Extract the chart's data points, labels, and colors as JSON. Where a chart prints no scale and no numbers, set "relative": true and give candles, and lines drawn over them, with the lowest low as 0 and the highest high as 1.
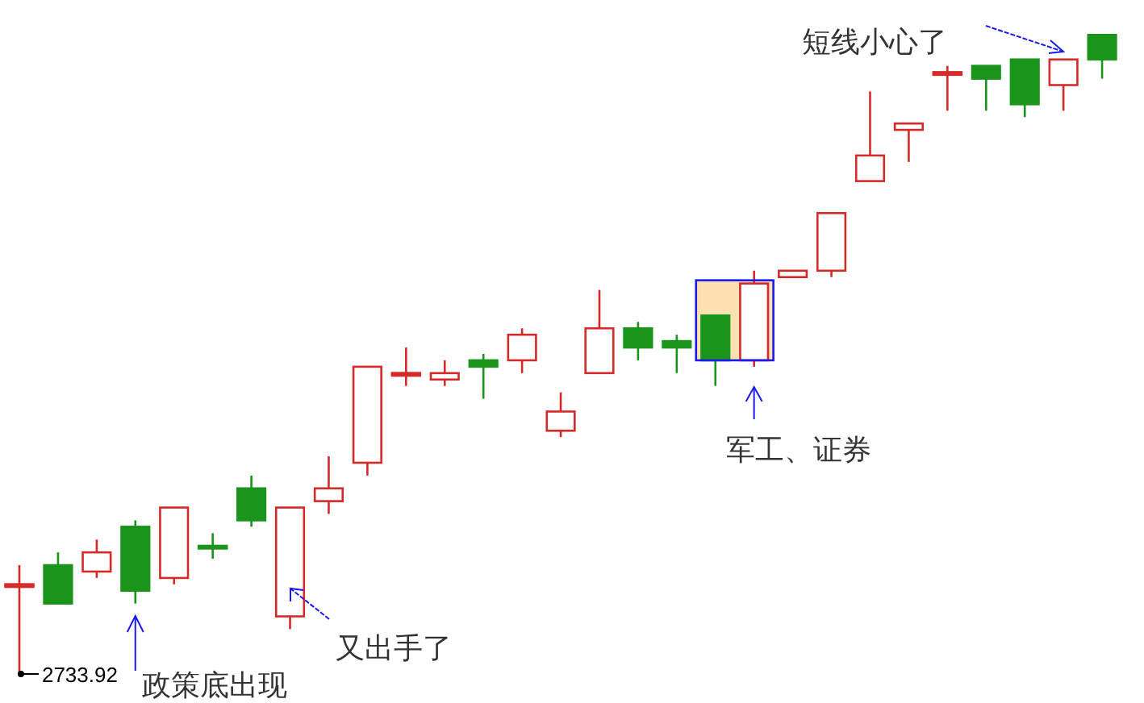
{
  "chart_data": {
    "type": "candlestick",
    "relative": true,
    "categories": [
      null,
      null,
      null,
      null,
      null,
      null,
      null,
      null,
      null,
      null,
      null,
      null,
      null,
      null,
      null,
      null,
      null,
      null,
      null,
      null,
      null,
      null,
      null,
      null,
      null,
      null,
      null,
      null,
      null
    ],
    "ohlc": [
      [
        0.14,
        0.17,
        0,
        0.14
      ],
      [
        0.17,
        0.19,
        0.11,
        0.11
      ],
      [
        0.16,
        0.21,
        0.15,
        0.19
      ],
      [
        0.23,
        0.24,
        0.11,
        0.13
      ],
      [
        0.15,
        0.26,
        0.14,
        0.26
      ],
      [
        0.2,
        0.22,
        0.18,
        0.2
      ],
      [
        0.29,
        0.31,
        0.23,
        0.24
      ],
      [
        0.09,
        0.26,
        0.07,
        0.26
      ],
      [
        0.27,
        0.34,
        0.25,
        0.29
      ],
      [
        0.33,
        0.48,
        0.31,
        0.48
      ],
      [
        0.47,
        0.51,
        0.45,
        0.47
      ],
      [
        0.46,
        0.49,
        0.45,
        0.47
      ],
      [
        0.49,
        0.5,
        0.43,
        0.48
      ],
      [
        0.49,
        0.54,
        0.47,
        0.53
      ],
      [
        0.38,
        0.44,
        0.37,
        0.41
      ],
      [
        0.47,
        0.6,
        0.47,
        0.54
      ],
      [
        0.54,
        0.55,
        0.49,
        0.51
      ],
      [
        0.52,
        0.53,
        0.47,
        0.51
      ],
      [
        0.56,
        0.56,
        0.45,
        0.49
      ],
      [
        0.49,
        0.63,
        0.48,
        0.61
      ],
      [
        0.62,
        0.63,
        0.62,
        0.63
      ],
      [
        0.63,
        0.72,
        0.62,
        0.72
      ],
      [
        0.77,
        0.91,
        0.77,
        0.81
      ],
      [
        0.85,
        0.86,
        0.8,
        0.86
      ],
      [
        0.94,
        0.95,
        0.88,
        0.94
      ],
      [
        0.95,
        0.95,
        0.88,
        0.93
      ],
      [
        0.96,
        0.96,
        0.87,
        0.89
      ],
      [
        0.92,
        0.96,
        0.88,
        0.96
      ],
      [
        1,
        1,
        0.93,
        0.96
      ]
    ],
    "colors": [
      "#d42a2a",
      "#1a941a",
      "#d42a2a",
      "#1a941a",
      "#d42a2a",
      "#1a941a",
      "#1a941a",
      "#d42a2a",
      "#d42a2a",
      "#d42a2a",
      "#d42a2a",
      "#d42a2a",
      "#1a941a",
      "#d42a2a",
      "#d42a2a",
      "#d42a2a",
      "#1a941a",
      "#1a941a",
      "#1a941a",
      "#d42a2a",
      "#d42a2a",
      "#d42a2a",
      "#d42a2a",
      "#d42a2a",
      "#d42a2a",
      "#1a941a",
      "#1a941a",
      "#d42a2a",
      "#1a941a"
    ],
    "annotations": [
      "2733.92",
      "政策底出现",
      "又出手了",
      "军工、证券",
      "短线小心了"
    ]
  }
}
